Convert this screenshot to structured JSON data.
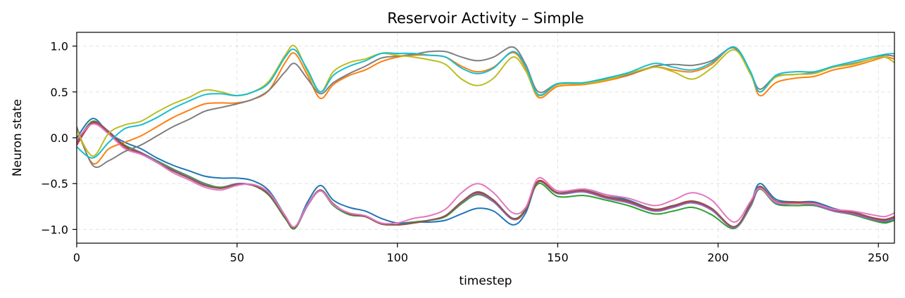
{
  "chart_data": {
    "type": "line",
    "title": "Reservoir Activity – Simple",
    "xlabel": "timestep",
    "ylabel": "Neuron state",
    "xlim": [
      0,
      255
    ],
    "ylim": [
      -1.15,
      1.15
    ],
    "xticks": [
      0,
      50,
      100,
      150,
      200,
      250
    ],
    "xtick_labels": [
      "0",
      "50",
      "100",
      "150",
      "200",
      "250"
    ],
    "yticks": [
      1.0,
      0.5,
      0.0,
      -0.5,
      -1.0
    ],
    "ytick_labels": [
      "1.0",
      "0.5",
      "0.0",
      "−0.5",
      "−1.0"
    ],
    "grid": true,
    "x": [
      0,
      5,
      10,
      15,
      20,
      25,
      30,
      35,
      40,
      45,
      50,
      55,
      60,
      65,
      68,
      72,
      76,
      80,
      85,
      90,
      95,
      100,
      105,
      110,
      115,
      120,
      125,
      130,
      136,
      140,
      144,
      150,
      158,
      165,
      172,
      180,
      186,
      192,
      198,
      205,
      210,
      213,
      218,
      224,
      230,
      236,
      242,
      248,
      252,
      255
    ],
    "series": [
      {
        "color": "#1f77b4",
        "values": [
          0.0,
          0.21,
          0.05,
          -0.05,
          -0.12,
          -0.22,
          -0.3,
          -0.36,
          -0.42,
          -0.44,
          -0.44,
          -0.47,
          -0.58,
          -0.85,
          -0.98,
          -0.7,
          -0.52,
          -0.68,
          -0.76,
          -0.8,
          -0.88,
          -0.93,
          -0.92,
          -0.92,
          -0.9,
          -0.83,
          -0.77,
          -0.8,
          -0.95,
          -0.82,
          -0.48,
          -0.6,
          -0.56,
          -0.62,
          -0.68,
          -0.78,
          -0.74,
          -0.71,
          -0.78,
          -0.98,
          -0.72,
          -0.5,
          -0.67,
          -0.7,
          -0.7,
          -0.77,
          -0.82,
          -0.89,
          -0.92,
          -0.88
        ]
      },
      {
        "color": "#ff7f0e",
        "values": [
          0.1,
          -0.28,
          -0.12,
          -0.05,
          0.02,
          0.12,
          0.22,
          0.3,
          0.37,
          0.38,
          0.38,
          0.42,
          0.52,
          0.82,
          0.92,
          0.68,
          0.43,
          0.58,
          0.68,
          0.74,
          0.83,
          0.88,
          0.9,
          0.9,
          0.88,
          0.78,
          0.72,
          0.77,
          0.93,
          0.76,
          0.44,
          0.56,
          0.58,
          0.62,
          0.68,
          0.77,
          0.74,
          0.72,
          0.8,
          0.99,
          0.72,
          0.46,
          0.6,
          0.65,
          0.67,
          0.74,
          0.78,
          0.84,
          0.88,
          0.86
        ]
      },
      {
        "color": "#2ca02c",
        "values": [
          -0.05,
          0.18,
          0.05,
          -0.08,
          -0.16,
          -0.25,
          -0.34,
          -0.42,
          -0.5,
          -0.54,
          -0.5,
          -0.52,
          -0.63,
          -0.88,
          -0.99,
          -0.74,
          -0.58,
          -0.74,
          -0.84,
          -0.86,
          -0.93,
          -0.95,
          -0.92,
          -0.9,
          -0.86,
          -0.72,
          -0.62,
          -0.7,
          -0.88,
          -0.78,
          -0.5,
          -0.64,
          -0.63,
          -0.68,
          -0.74,
          -0.83,
          -0.8,
          -0.76,
          -0.84,
          -0.99,
          -0.76,
          -0.56,
          -0.72,
          -0.74,
          -0.74,
          -0.8,
          -0.84,
          -0.9,
          -0.93,
          -0.9
        ]
      },
      {
        "color": "#d62728",
        "values": [
          -0.08,
          0.16,
          0.06,
          -0.1,
          -0.17,
          -0.27,
          -0.36,
          -0.44,
          -0.52,
          -0.55,
          -0.51,
          -0.52,
          -0.62,
          -0.86,
          -0.98,
          -0.73,
          -0.57,
          -0.72,
          -0.83,
          -0.86,
          -0.94,
          -0.95,
          -0.93,
          -0.9,
          -0.85,
          -0.7,
          -0.6,
          -0.69,
          -0.89,
          -0.79,
          -0.47,
          -0.6,
          -0.58,
          -0.65,
          -0.7,
          -0.79,
          -0.75,
          -0.7,
          -0.78,
          -0.98,
          -0.74,
          -0.54,
          -0.7,
          -0.71,
          -0.72,
          -0.79,
          -0.82,
          -0.88,
          -0.9,
          -0.87
        ]
      },
      {
        "color": "#9467bd",
        "values": [
          -0.06,
          0.17,
          0.07,
          -0.09,
          -0.16,
          -0.26,
          -0.35,
          -0.43,
          -0.51,
          -0.55,
          -0.5,
          -0.52,
          -0.62,
          -0.87,
          -0.98,
          -0.74,
          -0.58,
          -0.73,
          -0.83,
          -0.86,
          -0.94,
          -0.95,
          -0.93,
          -0.9,
          -0.85,
          -0.71,
          -0.61,
          -0.7,
          -0.89,
          -0.79,
          -0.48,
          -0.61,
          -0.59,
          -0.66,
          -0.71,
          -0.8,
          -0.76,
          -0.71,
          -0.79,
          -0.98,
          -0.75,
          -0.55,
          -0.71,
          -0.72,
          -0.73,
          -0.8,
          -0.83,
          -0.89,
          -0.91,
          -0.88
        ]
      },
      {
        "color": "#8c564b",
        "values": [
          -0.05,
          0.17,
          0.06,
          -0.09,
          -0.17,
          -0.27,
          -0.36,
          -0.44,
          -0.52,
          -0.55,
          -0.51,
          -0.52,
          -0.62,
          -0.87,
          -0.98,
          -0.73,
          -0.57,
          -0.72,
          -0.83,
          -0.86,
          -0.94,
          -0.95,
          -0.93,
          -0.9,
          -0.85,
          -0.7,
          -0.59,
          -0.68,
          -0.88,
          -0.79,
          -0.48,
          -0.6,
          -0.57,
          -0.64,
          -0.69,
          -0.78,
          -0.74,
          -0.69,
          -0.77,
          -0.97,
          -0.73,
          -0.53,
          -0.69,
          -0.7,
          -0.71,
          -0.78,
          -0.81,
          -0.87,
          -0.89,
          -0.86
        ]
      },
      {
        "color": "#e377c2",
        "values": [
          -0.02,
          0.15,
          0.04,
          -0.12,
          -0.18,
          -0.27,
          -0.38,
          -0.46,
          -0.54,
          -0.57,
          -0.52,
          -0.51,
          -0.6,
          -0.85,
          -0.97,
          -0.73,
          -0.58,
          -0.73,
          -0.82,
          -0.85,
          -0.93,
          -0.93,
          -0.88,
          -0.85,
          -0.78,
          -0.6,
          -0.5,
          -0.6,
          -0.82,
          -0.76,
          -0.44,
          -0.58,
          -0.56,
          -0.62,
          -0.66,
          -0.74,
          -0.68,
          -0.6,
          -0.68,
          -0.92,
          -0.7,
          -0.55,
          -0.7,
          -0.72,
          -0.72,
          -0.78,
          -0.8,
          -0.84,
          -0.86,
          -0.82
        ]
      },
      {
        "color": "#7f7f7f",
        "values": [
          0.12,
          -0.3,
          -0.25,
          -0.15,
          -0.08,
          0.02,
          0.12,
          0.2,
          0.29,
          0.33,
          0.37,
          0.42,
          0.52,
          0.72,
          0.81,
          0.64,
          0.48,
          0.6,
          0.7,
          0.78,
          0.87,
          0.89,
          0.91,
          0.94,
          0.94,
          0.88,
          0.84,
          0.88,
          0.99,
          0.8,
          0.5,
          0.59,
          0.6,
          0.64,
          0.69,
          0.78,
          0.8,
          0.79,
          0.84,
          0.98,
          0.72,
          0.53,
          0.67,
          0.69,
          0.71,
          0.77,
          0.81,
          0.86,
          0.9,
          0.89
        ]
      },
      {
        "color": "#bcbd22",
        "values": [
          0.08,
          -0.2,
          0.05,
          0.14,
          0.18,
          0.28,
          0.37,
          0.44,
          0.52,
          0.5,
          0.46,
          0.5,
          0.62,
          0.9,
          1.0,
          0.72,
          0.5,
          0.72,
          0.82,
          0.86,
          0.92,
          0.9,
          0.88,
          0.85,
          0.8,
          0.64,
          0.57,
          0.65,
          0.88,
          0.73,
          0.46,
          0.58,
          0.59,
          0.63,
          0.7,
          0.77,
          0.72,
          0.64,
          0.76,
          0.96,
          0.7,
          0.5,
          0.66,
          0.69,
          0.7,
          0.77,
          0.8,
          0.86,
          0.88,
          0.82
        ]
      },
      {
        "color": "#17becf",
        "values": [
          -0.1,
          -0.22,
          -0.05,
          0.1,
          0.14,
          0.22,
          0.32,
          0.4,
          0.47,
          0.48,
          0.46,
          0.5,
          0.6,
          0.88,
          0.96,
          0.74,
          0.5,
          0.68,
          0.78,
          0.84,
          0.92,
          0.92,
          0.92,
          0.9,
          0.88,
          0.76,
          0.7,
          0.76,
          0.94,
          0.78,
          0.47,
          0.59,
          0.6,
          0.65,
          0.71,
          0.81,
          0.77,
          0.74,
          0.82,
          0.99,
          0.73,
          0.5,
          0.68,
          0.72,
          0.72,
          0.78,
          0.83,
          0.88,
          0.91,
          0.92
        ]
      }
    ]
  }
}
